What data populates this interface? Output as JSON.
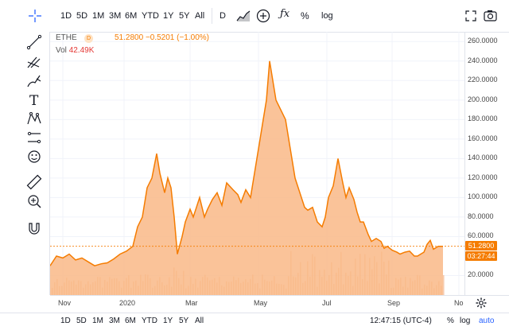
{
  "toolbar": {
    "ranges": [
      "1D",
      "5D",
      "1M",
      "3M",
      "6M",
      "YTD",
      "1Y",
      "5Y",
      "All"
    ],
    "interval": "D",
    "percent": "%",
    "log": "log",
    "icons": [
      "bars-style-icon",
      "add-indicator-icon",
      "fx-icon",
      "fullscreen-icon",
      "camera-icon"
    ]
  },
  "left_tools": [
    "crosshair-icon",
    "trend-line-icon",
    "pitchfork-icon",
    "brush-icon",
    "text-icon",
    "pattern-icon",
    "prediction-icon",
    "emoji-icon",
    "ruler-icon",
    "zoom-icon",
    "magnet-icon"
  ],
  "legend": {
    "symbol": "ETHE",
    "interval_badge": "D",
    "price": "51.2800",
    "change": "−0.5201 (−1.00%)",
    "vol_label": "Vol",
    "vol_value": "42.49K"
  },
  "price_tag": "51.2800",
  "countdown_tag": "03:27:44",
  "bottom": {
    "ranges": [
      "1D",
      "5D",
      "1M",
      "3M",
      "6M",
      "YTD",
      "1Y",
      "5Y",
      "All"
    ],
    "time": "12:47:15 (UTC-4)",
    "percent": "%",
    "log": "log",
    "auto": "auto"
  },
  "colors": {
    "accent": "#f57c00",
    "area_fill": "#f9b987",
    "volume": "#f3b88e"
  },
  "chart_data": {
    "type": "area",
    "y_ticks": [
      "260.0000",
      "240.0000",
      "220.0000",
      "200.0000",
      "180.0000",
      "160.0000",
      "140.0000",
      "120.0000",
      "100.0000",
      "80.0000",
      "60.0000",
      "20.0000"
    ],
    "x_ticks": [
      "Nov",
      "2020",
      "Mar",
      "May",
      "Jul",
      "Sep",
      "No"
    ],
    "ylim": [
      0,
      270
    ],
    "x": [
      0,
      8,
      16,
      24,
      32,
      40,
      48,
      56,
      64,
      72,
      80,
      88,
      96,
      104,
      110,
      116,
      122,
      128,
      134,
      138,
      144,
      148,
      152,
      156,
      160,
      166,
      170,
      176,
      180,
      184,
      188,
      194,
      198,
      204,
      210,
      216,
      222,
      230,
      236,
      240,
      246,
      252,
      258,
      264,
      268,
      272,
      276,
      280,
      284,
      290,
      296,
      302,
      308,
      314,
      320,
      324,
      330,
      336,
      342,
      346,
      350,
      356,
      362,
      368,
      372,
      376,
      382,
      386,
      390,
      394,
      400,
      404,
      410,
      416,
      420,
      424,
      430,
      436,
      440,
      446,
      452,
      458,
      462,
      466,
      470,
      474,
      478,
      482,
      488,
      494
    ],
    "values": [
      30,
      40,
      38,
      42,
      36,
      38,
      34,
      30,
      32,
      33,
      37,
      42,
      45,
      50,
      70,
      80,
      110,
      120,
      145,
      125,
      105,
      120,
      110,
      80,
      42,
      60,
      75,
      88,
      80,
      90,
      100,
      80,
      88,
      98,
      105,
      92,
      115,
      108,
      103,
      95,
      108,
      100,
      130,
      160,
      180,
      200,
      240,
      220,
      200,
      190,
      180,
      150,
      120,
      105,
      90,
      87,
      90,
      75,
      70,
      80,
      100,
      112,
      140,
      115,
      100,
      110,
      98,
      85,
      75,
      75,
      62,
      55,
      58,
      55,
      48,
      50,
      46,
      44,
      42,
      44,
      45,
      40,
      40,
      42,
      44,
      52,
      56,
      47,
      50,
      50
    ]
  }
}
